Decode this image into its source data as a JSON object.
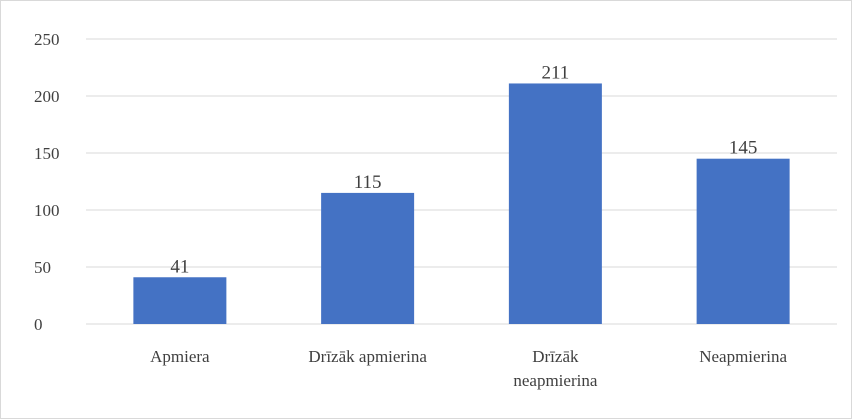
{
  "chart_data": {
    "type": "bar",
    "categories": [
      "Apmiera",
      "Drīzāk apmierina",
      "Drīzāk\nneapmierina",
      "Neapmierina"
    ],
    "values": [
      41,
      115,
      211,
      145
    ],
    "title": "",
    "xlabel": "",
    "ylabel": "",
    "ylim": [
      0,
      250
    ],
    "yticks": [
      0,
      50,
      100,
      150,
      200,
      250
    ],
    "grid": true,
    "legend": "none",
    "data_labels": true,
    "bar_color": "#4472c4",
    "grid_color": "#d9d9d9"
  }
}
